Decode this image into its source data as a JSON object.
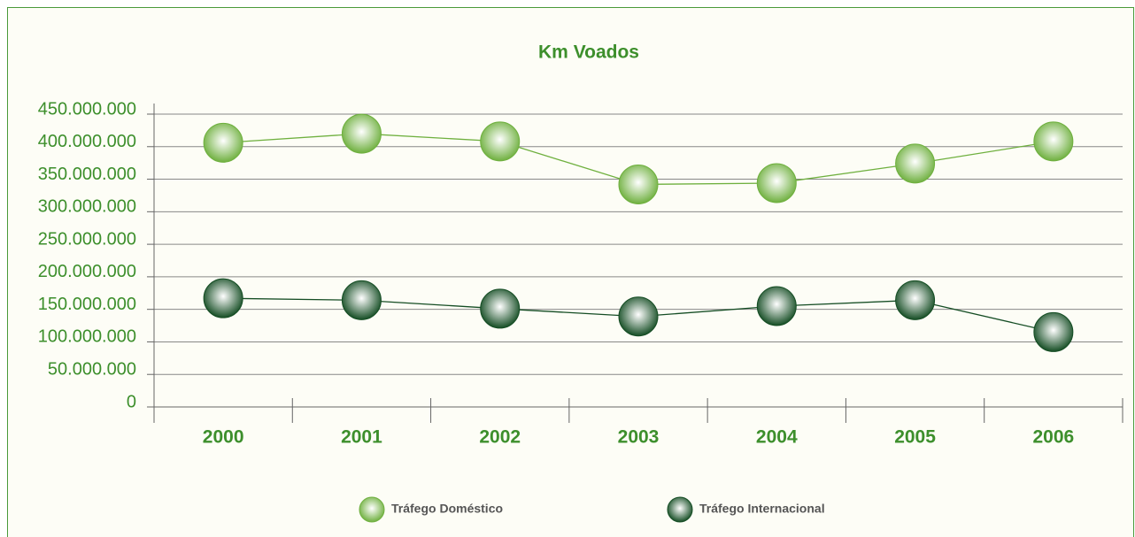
{
  "chart_data": {
    "type": "line",
    "title": "Km Voados",
    "categories": [
      "2000",
      "2001",
      "2002",
      "2003",
      "2004",
      "2005",
      "2006"
    ],
    "series": [
      {
        "name": "Tráfego Doméstico",
        "color": "#6fb03f",
        "values": [
          406000000,
          420000000,
          408000000,
          342000000,
          344000000,
          374000000,
          408000000
        ]
      },
      {
        "name": "Tráfego Internacional",
        "color": "#154d24",
        "values": [
          167000000,
          164000000,
          151000000,
          139000000,
          155000000,
          164000000,
          115000000
        ]
      }
    ],
    "ylim": [
      0,
      450000000
    ],
    "yticks": [
      0,
      {
        "value": 50000000,
        "label": "50.000.000"
      },
      {
        "value": 100000000,
        "label": "100.000.000"
      },
      {
        "value": 150000000,
        "label": "150.000.000"
      },
      {
        "value": 200000000,
        "label": "200.000.000"
      },
      {
        "value": 250000000,
        "label": "250.000.000"
      },
      {
        "value": 300000000,
        "label": "300.000.000"
      },
      {
        "value": 350000000,
        "label": "350.000.000"
      },
      {
        "value": 400000000,
        "label": "400.000.000"
      },
      {
        "value": 450000000,
        "label": "450.000.000"
      }
    ],
    "grid": true,
    "legend": "bottom"
  }
}
